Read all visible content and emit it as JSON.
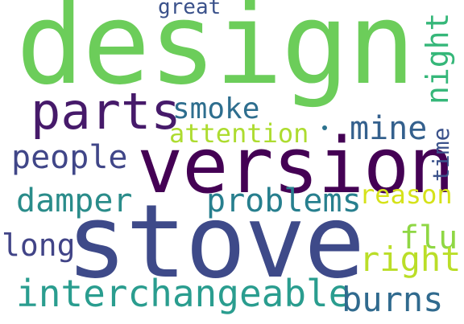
{
  "words": {
    "design": "design",
    "version": "version",
    "stove": "stove",
    "parts": "parts",
    "interchangeable": "interchangeable",
    "people": "people",
    "damper": "damper",
    "problems": "problems",
    "smoke": "smoke",
    "mine": "mine",
    "attention": "attention",
    "reason": "reason",
    "flu": "flu",
    "right": "right",
    "burns": "burns",
    "long": "long",
    "great": "great",
    "night": "night",
    "time": "time"
  },
  "colors": {
    "background": "#ffffff",
    "green": "#6ccd5a",
    "dark_purple": "#440154",
    "indigo": "#3e4a89",
    "teal": "#2a9d8f",
    "yellow_green": "#bade28"
  }
}
